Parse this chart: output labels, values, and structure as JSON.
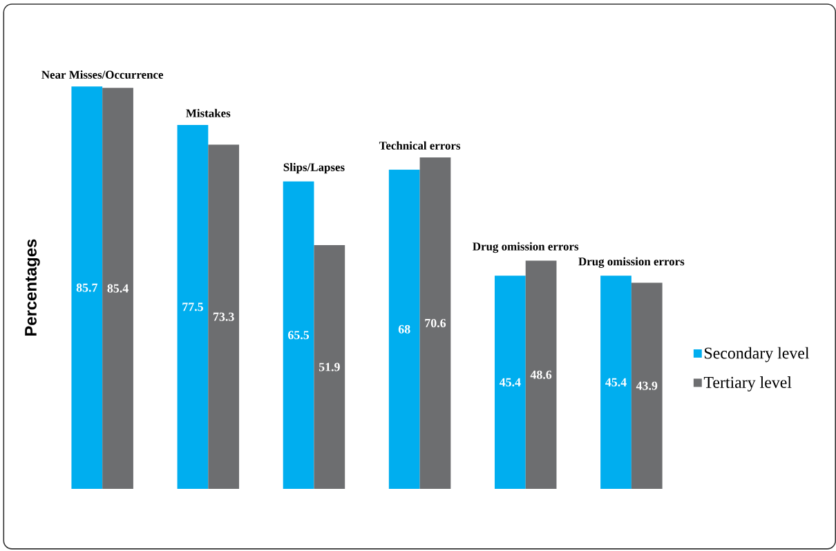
{
  "chart_data": {
    "type": "bar",
    "ylabel": "Percentages",
    "categories": [
      "Near Misses/Occurrence",
      "Mistakes",
      "Slips/Lapses",
      "Technical errors",
      "Drug omission errors",
      "Drug omission errors"
    ],
    "series": [
      {
        "name": "Secondary level",
        "color": "#00aeef",
        "values": [
          85.7,
          77.5,
          65.5,
          68,
          45.4,
          45.4
        ]
      },
      {
        "name": "Tertiary level",
        "color": "#6d6e70",
        "values": [
          85.4,
          73.3,
          51.9,
          70.6,
          48.6,
          43.9
        ]
      }
    ],
    "data_labels": true,
    "legend": "right"
  }
}
